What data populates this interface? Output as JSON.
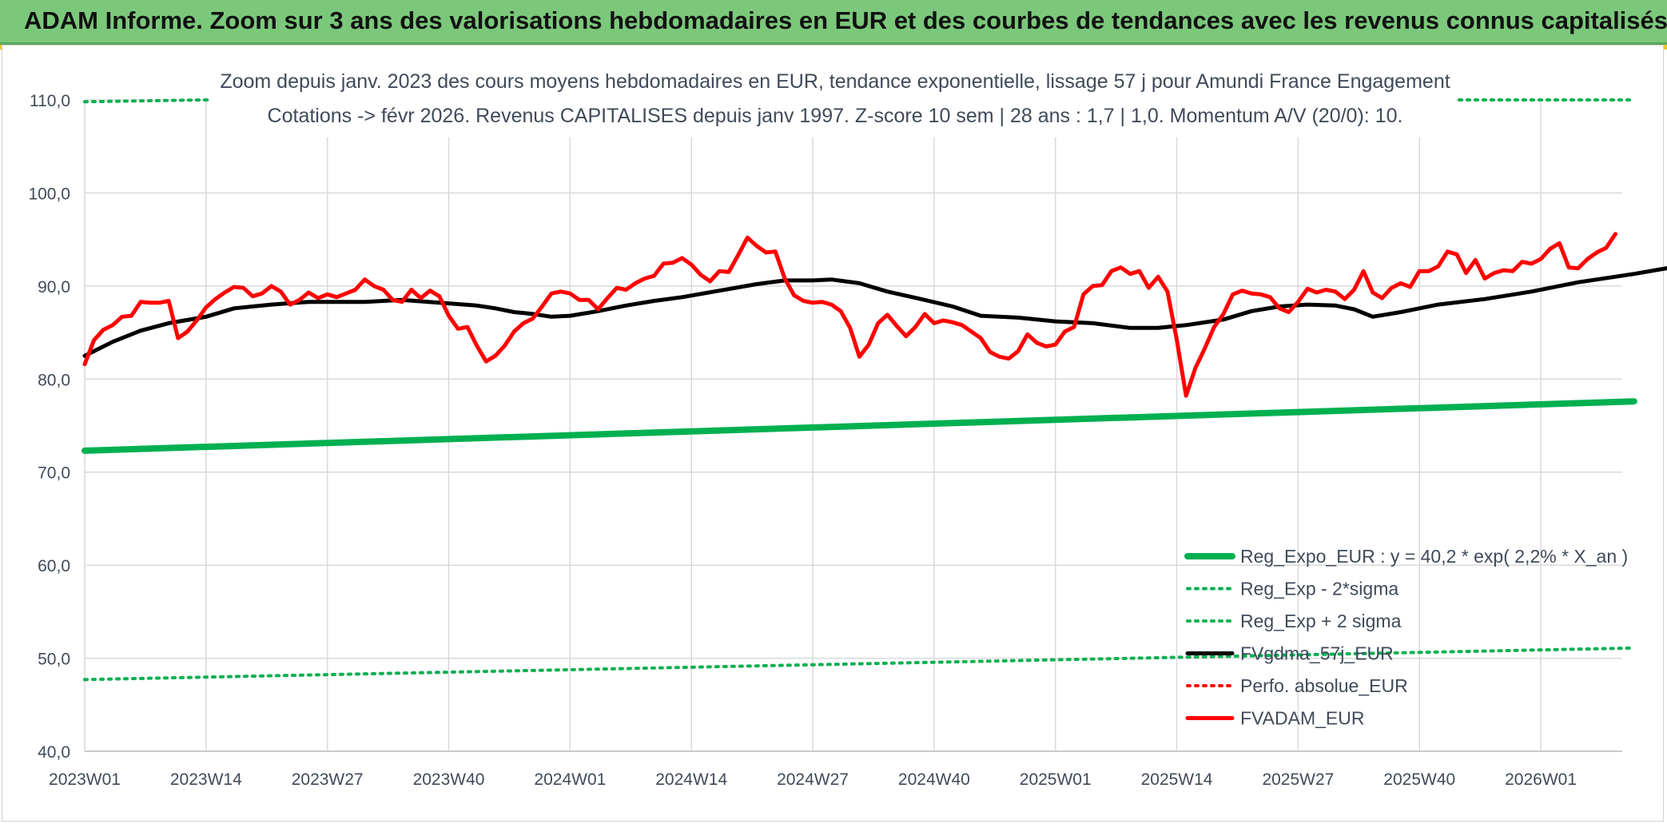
{
  "banner": {
    "title": "ADAM Informe. Zoom sur 3 ans des valorisations hebdomadaires en EUR et des courbes de tendances avec les revenus connus capitalisés",
    "color": "#7bc87b"
  },
  "chart_data": {
    "type": "line",
    "title": "Zoom depuis janv. 2023 des cours moyens hebdomadaires en EUR, tendance exponentielle, lissage 57 j pour Amundi France Engagement",
    "subtitle": "Cotations -> févr 2026. Revenus CAPITALISES depuis janv 1997. Z-score 10 sem | 28 ans : 1,7 | 1,0. Momentum A/V (20/0): 10.",
    "xlabel": "",
    "ylabel": "",
    "ylim": [
      40,
      110
    ],
    "y_ticks": [
      "40,0",
      "50,0",
      "60,0",
      "70,0",
      "80,0",
      "90,0",
      "100,0",
      "110,0"
    ],
    "x_ticks": [
      "2023W01",
      "2023W14",
      "2023W27",
      "2023W40",
      "2024W01",
      "2024W14",
      "2024W27",
      "2024W40",
      "2025W01",
      "2025W14",
      "2025W27",
      "2025W40",
      "2026W01"
    ],
    "x_tick_step_weeks": 13,
    "grid": true,
    "legend_position": "bottom-right",
    "series": [
      {
        "name": "Reg_Expo_EUR : y = 40,2 * exp( 2,2% *  X_an )",
        "color": "#00b050",
        "style": "solid-thick",
        "points": [
          [
            0,
            72.3
          ],
          [
            166,
            77.6
          ]
        ]
      },
      {
        "name": "Reg_Exp - 2*sigma",
        "color": "#00b050",
        "style": "dotted",
        "points": [
          [
            0,
            47.7
          ],
          [
            166,
            51.1
          ]
        ]
      },
      {
        "name": "Reg_Exp + 2 sigma",
        "color": "#00b050",
        "style": "dotted",
        "points": [
          [
            0,
            109.8
          ],
          [
            13,
            110.0
          ],
          [
            166,
            110.0
          ]
        ]
      },
      {
        "name": "FVgdma_57j_EUR",
        "color": "#000000",
        "style": "solid",
        "points": [
          [
            0,
            82.5
          ],
          [
            3,
            84.0
          ],
          [
            6,
            85.2
          ],
          [
            9,
            86.0
          ],
          [
            13,
            86.7
          ],
          [
            16,
            87.6
          ],
          [
            20,
            88.0
          ],
          [
            24,
            88.3
          ],
          [
            30,
            88.3
          ],
          [
            34,
            88.5
          ],
          [
            38,
            88.2
          ],
          [
            42,
            87.9
          ],
          [
            44,
            87.6
          ],
          [
            46,
            87.2
          ],
          [
            48,
            87.0
          ],
          [
            50,
            86.7
          ],
          [
            52,
            86.8
          ],
          [
            55,
            87.3
          ],
          [
            58,
            87.9
          ],
          [
            61,
            88.4
          ],
          [
            64,
            88.8
          ],
          [
            68,
            89.5
          ],
          [
            72,
            90.2
          ],
          [
            75,
            90.6
          ],
          [
            78,
            90.6
          ],
          [
            80,
            90.7
          ],
          [
            83,
            90.3
          ],
          [
            86,
            89.4
          ],
          [
            90,
            88.5
          ],
          [
            93,
            87.8
          ],
          [
            96,
            86.8
          ],
          [
            100,
            86.6
          ],
          [
            104,
            86.2
          ],
          [
            108,
            86.0
          ],
          [
            112,
            85.5
          ],
          [
            115,
            85.5
          ],
          [
            118,
            85.8
          ],
          [
            122,
            86.4
          ],
          [
            125,
            87.3
          ],
          [
            128,
            87.8
          ],
          [
            131,
            88.0
          ],
          [
            134,
            87.9
          ],
          [
            136,
            87.5
          ],
          [
            138,
            86.7
          ],
          [
            141,
            87.2
          ],
          [
            145,
            88.0
          ],
          [
            150,
            88.6
          ],
          [
            155,
            89.4
          ],
          [
            160,
            90.4
          ],
          [
            166,
            91.3
          ],
          [
            170,
            92.0
          ],
          [
            175,
            92.7
          ],
          [
            180,
            93.5
          ],
          [
            184,
            94.3
          ]
        ]
      },
      {
        "name": "Perfo. absolue_EUR",
        "color": "#ff0000",
        "style": "dotted",
        "points": []
      },
      {
        "name": "FVADAM_EUR",
        "color": "#ff0000",
        "style": "solid",
        "points": [
          [
            0,
            81.6
          ],
          [
            1,
            84.2
          ],
          [
            2,
            85.3
          ],
          [
            3,
            85.8
          ],
          [
            4,
            86.7
          ],
          [
            5,
            86.8
          ],
          [
            6,
            88.3
          ],
          [
            7,
            88.2
          ],
          [
            8,
            88.2
          ],
          [
            9,
            88.4
          ],
          [
            10,
            84.4
          ],
          [
            11,
            85.1
          ],
          [
            12,
            86.3
          ],
          [
            13,
            87.7
          ],
          [
            14,
            88.6
          ],
          [
            15,
            89.3
          ],
          [
            16,
            89.9
          ],
          [
            17,
            89.8
          ],
          [
            18,
            88.9
          ],
          [
            19,
            89.2
          ],
          [
            20,
            90.0
          ],
          [
            21,
            89.4
          ],
          [
            22,
            88.0
          ],
          [
            23,
            88.5
          ],
          [
            24,
            89.3
          ],
          [
            25,
            88.7
          ],
          [
            26,
            89.1
          ],
          [
            27,
            88.8
          ],
          [
            28,
            89.2
          ],
          [
            29,
            89.6
          ],
          [
            30,
            90.7
          ],
          [
            31,
            90.0
          ],
          [
            32,
            89.6
          ],
          [
            33,
            88.5
          ],
          [
            34,
            88.3
          ],
          [
            35,
            89.6
          ],
          [
            36,
            88.7
          ],
          [
            37,
            89.5
          ],
          [
            38,
            88.9
          ],
          [
            39,
            86.8
          ],
          [
            40,
            85.4
          ],
          [
            41,
            85.6
          ],
          [
            42,
            83.6
          ],
          [
            43,
            81.9
          ],
          [
            44,
            82.5
          ],
          [
            45,
            83.6
          ],
          [
            46,
            85.1
          ],
          [
            47,
            86.0
          ],
          [
            48,
            86.5
          ],
          [
            49,
            87.8
          ],
          [
            50,
            89.2
          ],
          [
            51,
            89.4
          ],
          [
            52,
            89.2
          ],
          [
            53,
            88.5
          ],
          [
            54,
            88.5
          ],
          [
            55,
            87.5
          ],
          [
            56,
            88.7
          ],
          [
            57,
            89.8
          ],
          [
            58,
            89.6
          ],
          [
            59,
            90.3
          ],
          [
            60,
            90.8
          ],
          [
            61,
            91.1
          ],
          [
            62,
            92.4
          ],
          [
            63,
            92.5
          ],
          [
            64,
            93.0
          ],
          [
            65,
            92.3
          ],
          [
            66,
            91.2
          ],
          [
            67,
            90.5
          ],
          [
            68,
            91.6
          ],
          [
            69,
            91.5
          ],
          [
            70,
            93.3
          ],
          [
            71,
            95.2
          ],
          [
            72,
            94.3
          ],
          [
            73,
            93.6
          ],
          [
            74,
            93.7
          ],
          [
            75,
            90.8
          ],
          [
            76,
            89.0
          ],
          [
            77,
            88.4
          ],
          [
            78,
            88.2
          ],
          [
            79,
            88.3
          ],
          [
            80,
            88.0
          ],
          [
            81,
            87.3
          ],
          [
            82,
            85.5
          ],
          [
            83,
            82.4
          ],
          [
            84,
            83.7
          ],
          [
            85,
            86.0
          ],
          [
            86,
            86.9
          ],
          [
            87,
            85.7
          ],
          [
            88,
            84.6
          ],
          [
            89,
            85.6
          ],
          [
            90,
            87.0
          ],
          [
            91,
            86.0
          ],
          [
            92,
            86.3
          ],
          [
            93,
            86.1
          ],
          [
            94,
            85.8
          ],
          [
            95,
            85.1
          ],
          [
            96,
            84.4
          ],
          [
            97,
            82.9
          ],
          [
            98,
            82.4
          ],
          [
            99,
            82.2
          ],
          [
            100,
            83.0
          ],
          [
            101,
            84.8
          ],
          [
            102,
            83.9
          ],
          [
            103,
            83.5
          ],
          [
            104,
            83.7
          ],
          [
            105,
            85.1
          ],
          [
            106,
            85.6
          ],
          [
            107,
            89.1
          ],
          [
            108,
            90.0
          ],
          [
            109,
            90.1
          ],
          [
            110,
            91.6
          ],
          [
            111,
            92.0
          ],
          [
            112,
            91.3
          ],
          [
            113,
            91.6
          ],
          [
            114,
            89.8
          ],
          [
            115,
            91.0
          ],
          [
            116,
            89.4
          ],
          [
            117,
            84.2
          ],
          [
            118,
            78.2
          ],
          [
            119,
            81.2
          ],
          [
            120,
            83.3
          ],
          [
            121,
            85.6
          ],
          [
            122,
            87.0
          ],
          [
            123,
            89.1
          ],
          [
            124,
            89.5
          ],
          [
            125,
            89.2
          ],
          [
            126,
            89.1
          ],
          [
            127,
            88.8
          ],
          [
            128,
            87.6
          ],
          [
            129,
            87.2
          ],
          [
            130,
            88.3
          ],
          [
            131,
            89.7
          ],
          [
            132,
            89.3
          ],
          [
            133,
            89.6
          ],
          [
            134,
            89.4
          ],
          [
            135,
            88.6
          ],
          [
            136,
            89.6
          ],
          [
            137,
            91.6
          ],
          [
            138,
            89.3
          ],
          [
            139,
            88.7
          ],
          [
            140,
            89.8
          ],
          [
            141,
            90.3
          ],
          [
            142,
            89.9
          ],
          [
            143,
            91.6
          ],
          [
            144,
            91.6
          ],
          [
            145,
            92.1
          ],
          [
            146,
            93.7
          ],
          [
            147,
            93.4
          ],
          [
            148,
            91.4
          ],
          [
            149,
            92.8
          ],
          [
            150,
            90.8
          ],
          [
            151,
            91.4
          ],
          [
            152,
            91.7
          ],
          [
            153,
            91.6
          ],
          [
            154,
            92.6
          ],
          [
            155,
            92.4
          ],
          [
            156,
            92.9
          ],
          [
            157,
            94.0
          ],
          [
            158,
            94.6
          ],
          [
            159,
            92.0
          ],
          [
            160,
            91.9
          ],
          [
            161,
            92.9
          ],
          [
            162,
            93.6
          ],
          [
            163,
            94.1
          ],
          [
            164,
            95.6
          ]
        ]
      }
    ]
  }
}
